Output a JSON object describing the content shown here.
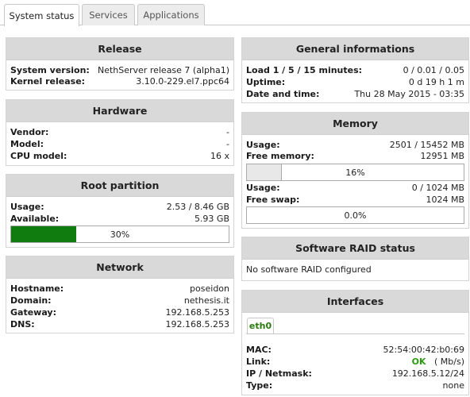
{
  "tabs": [
    "System status",
    "Services",
    "Applications"
  ],
  "release": {
    "title": "Release",
    "rows": [
      {
        "k": "System version:",
        "v": "NethServer release 7 (alpha1)"
      },
      {
        "k": "Kernel release:",
        "v": "3.10.0-229.el7.ppc64"
      }
    ]
  },
  "hardware": {
    "title": "Hardware",
    "rows": [
      {
        "k": "Vendor:",
        "v": "-"
      },
      {
        "k": "Model:",
        "v": "-"
      },
      {
        "k": "CPU model:",
        "v": "16 x"
      }
    ]
  },
  "root": {
    "title": "Root partition",
    "rows": [
      {
        "k": "Usage:",
        "v": "2.53 / 8.46 GB"
      },
      {
        "k": "Available:",
        "v": "5.93 GB"
      }
    ],
    "usage_percent": 30,
    "usage_label": "30%",
    "bar_color": "#107c10"
  },
  "network": {
    "title": "Network",
    "rows": [
      {
        "k": "Hostname:",
        "v": "poseidon"
      },
      {
        "k": "Domain:",
        "v": "nethesis.it"
      },
      {
        "k": "Gateway:",
        "v": "192.168.5.253"
      },
      {
        "k": "DNS:",
        "v": "192.168.5.253"
      }
    ]
  },
  "general": {
    "title": "General informations",
    "rows": [
      {
        "k": "Load 1 / 5 / 15 minutes:",
        "v": "0 / 0.01 / 0.05"
      },
      {
        "k": "Uptime:",
        "v": "0 d 19 h 1 m"
      },
      {
        "k": "Date and time:",
        "v": "Thu 28 May 2015 - 03:35"
      }
    ]
  },
  "memory": {
    "title": "Memory",
    "mem_rows": [
      {
        "k": "Usage:",
        "v": "2501 / 15452 MB"
      },
      {
        "k": "Free memory:",
        "v": "12951 MB"
      }
    ],
    "mem_percent": 16,
    "mem_label": "16%",
    "mem_bar_color": "#e8e8e8",
    "swap_rows": [
      {
        "k": "Usage:",
        "v": "0 / 1024 MB"
      },
      {
        "k": "Free swap:",
        "v": "1024 MB"
      }
    ],
    "swap_percent": 0,
    "swap_label": "0.0%"
  },
  "raid": {
    "title": "Software RAID status",
    "text": "No software RAID configured"
  },
  "interfaces": {
    "title": "Interfaces",
    "subtab": "eth0",
    "mac": {
      "k": "MAC:",
      "v": "52:54:00:42:b0:69"
    },
    "link": {
      "k": "Link:",
      "status": "OK",
      "speed": "( Mb/s)"
    },
    "ip": {
      "k": "IP / Netmask:",
      "v": "192.168.5.12/24"
    },
    "type": {
      "k": "Type:",
      "v": "none"
    },
    "ok_color": "#2a9a10"
  }
}
